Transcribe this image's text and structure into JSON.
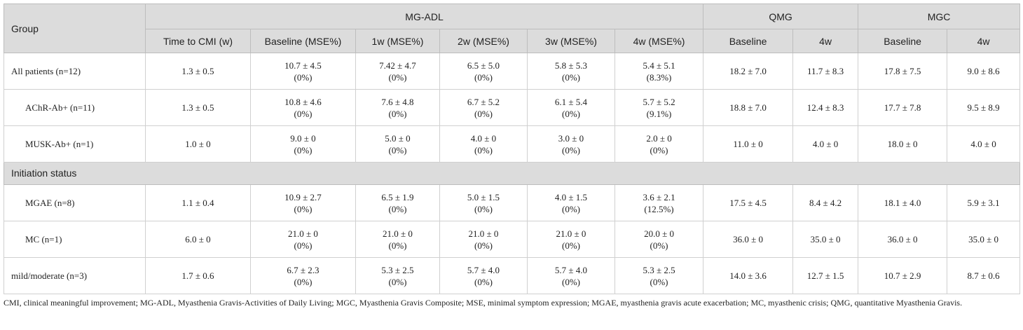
{
  "headers": {
    "group": "Group",
    "mgadl": "MG-ADL",
    "qmg": "QMG",
    "mgc": "MGC",
    "time_to_cmi": "Time to CMI (w)",
    "mgadl_baseline": "Baseline (MSE%)",
    "mgadl_1w": "1w (MSE%)",
    "mgadl_2w": "2w (MSE%)",
    "mgadl_3w": "3w (MSE%)",
    "mgadl_4w": "4w (MSE%)",
    "qmg_baseline": "Baseline",
    "qmg_4w": "4w",
    "mgc_baseline": "Baseline",
    "mgc_4w": "4w"
  },
  "rows": [
    {
      "label": "All patients (n=12)",
      "cmi": "1.3 ± 0.5",
      "b1": "10.7 ± 4.5",
      "b2": "(0%)",
      "w1a": "7.42 ± 4.7",
      "w1b": "(0%)",
      "w2a": "6.5 ± 5.0",
      "w2b": "(0%)",
      "w3a": "5.8 ± 5.3",
      "w3b": "(0%)",
      "w4a": "5.4 ± 5.1",
      "w4b": "(8.3%)",
      "qmg_b": "18.2 ± 7.0",
      "qmg_4": "11.7 ± 8.3",
      "mgc_b": "17.8 ± 7.5",
      "mgc_4": "9.0 ± 8.6"
    },
    {
      "label": "AChR-Ab+ (n=11)",
      "cmi": "1.3 ± 0.5",
      "b1": "10.8 ± 4.6",
      "b2": "(0%)",
      "w1a": "7.6 ± 4.8",
      "w1b": "(0%)",
      "w2a": "6.7 ± 5.2",
      "w2b": "(0%)",
      "w3a": "6.1 ± 5.4",
      "w3b": "(0%)",
      "w4a": "5.7 ± 5.2",
      "w4b": "(9.1%)",
      "qmg_b": "18.8 ± 7.0",
      "qmg_4": "12.4 ± 8.3",
      "mgc_b": "17.7 ± 7.8",
      "mgc_4": "9.5 ± 8.9"
    },
    {
      "label": "MUSK-Ab+ (n=1)",
      "cmi": "1.0 ± 0",
      "b1": "9.0 ± 0",
      "b2": "(0%)",
      "w1a": "5.0 ± 0",
      "w1b": "(0%)",
      "w2a": "4.0 ± 0",
      "w2b": "(0%)",
      "w3a": "3.0 ± 0",
      "w3b": "(0%)",
      "w4a": "2.0 ± 0",
      "w4b": "(0%)",
      "qmg_b": "11.0 ± 0",
      "qmg_4": "4.0 ± 0",
      "mgc_b": "18.0 ± 0",
      "mgc_4": "4.0 ± 0"
    },
    {
      "label": "MGAE (n=8)",
      "cmi": "1.1 ± 0.4",
      "b1": "10.9 ± 2.7",
      "b2": "(0%)",
      "w1a": "6.5 ± 1.9",
      "w1b": "(0%)",
      "w2a": "5.0 ± 1.5",
      "w2b": "(0%)",
      "w3a": "4.0 ± 1.5",
      "w3b": "(0%)",
      "w4a": "3.6 ± 2.1",
      "w4b": "(12.5%)",
      "qmg_b": "17.5 ± 4.5",
      "qmg_4": "8.4 ± 4.2",
      "mgc_b": "18.1 ± 4.0",
      "mgc_4": "5.9 ± 3.1"
    },
    {
      "label": "MC (n=1)",
      "cmi": "6.0 ± 0",
      "b1": "21.0 ± 0",
      "b2": "(0%)",
      "w1a": "21.0 ± 0",
      "w1b": "(0%)",
      "w2a": "21.0 ± 0",
      "w2b": "(0%)",
      "w3a": "21.0 ± 0",
      "w3b": "(0%)",
      "w4a": "20.0 ± 0",
      "w4b": "(0%)",
      "qmg_b": "36.0 ± 0",
      "qmg_4": "35.0 ± 0",
      "mgc_b": "36.0 ± 0",
      "mgc_4": "35.0 ± 0"
    },
    {
      "label": "mild/moderate (n=3)",
      "cmi": "1.7 ± 0.6",
      "b1": "6.7 ± 2.3",
      "b2": "(0%)",
      "w1a": "5.3 ± 2.5",
      "w1b": "(0%)",
      "w2a": "5.7 ± 4.0",
      "w2b": "(0%)",
      "w3a": "5.7 ± 4.0",
      "w3b": "(0%)",
      "w4a": "5.3 ± 2.5",
      "w4b": "(0%)",
      "qmg_b": "14.0 ± 3.6",
      "qmg_4": "12.7 ± 1.5",
      "mgc_b": "10.7 ± 2.9",
      "mgc_4": "8.7 ± 0.6"
    }
  ],
  "section_label": "Initiation status",
  "footnote": "CMI, clinical meaningful improvement; MG-ADL, Myasthenia Gravis-Activities of Daily Living; MGC, Myasthenia Gravis Composite; MSE, minimal symptom expression; MGAE, myasthenia gravis acute exacerbation; MC, myasthenic crisis; QMG, quantitative Myasthenia Gravis."
}
